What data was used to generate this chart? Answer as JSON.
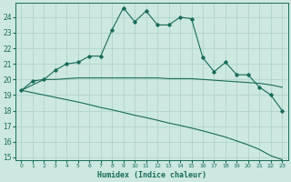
{
  "xlabel": "Humidex (Indice chaleur)",
  "x_ticks": [
    0,
    1,
    2,
    3,
    4,
    5,
    6,
    7,
    8,
    9,
    10,
    11,
    12,
    13,
    14,
    15,
    16,
    17,
    18,
    19,
    20,
    21,
    22,
    23
  ],
  "ylim": [
    14.8,
    24.9
  ],
  "yticks": [
    15,
    16,
    17,
    18,
    19,
    20,
    21,
    22,
    23,
    24
  ],
  "background_color": "#cce8e0",
  "grid_color": "#b0d4cc",
  "line_color": "#1a6b5a",
  "line1_x": [
    0,
    1,
    2,
    3,
    4,
    5,
    6,
    7,
    8,
    9,
    10,
    11,
    12,
    13,
    14,
    15,
    16,
    17,
    18,
    19,
    20,
    21,
    22,
    23
  ],
  "line1_y": [
    19.3,
    19.9,
    20.0,
    20.6,
    21.0,
    21.1,
    21.5,
    21.5,
    23.2,
    24.6,
    23.7,
    24.4,
    23.5,
    23.5,
    24.0,
    23.9,
    21.4,
    20.5,
    21.1,
    20.3,
    20.3,
    19.5,
    19.0,
    18.0
  ],
  "line2_x": [
    0,
    2,
    3,
    5,
    6,
    7,
    8,
    9,
    10,
    11,
    12,
    13,
    14,
    15,
    16,
    17,
    18,
    19,
    20,
    21,
    22,
    23
  ],
  "line2_y": [
    19.3,
    20.0,
    20.0,
    20.1,
    20.1,
    20.1,
    20.1,
    20.1,
    20.1,
    20.1,
    20.1,
    20.05,
    20.05,
    20.05,
    20.0,
    19.95,
    19.9,
    19.85,
    19.8,
    19.75,
    19.65,
    19.5
  ],
  "line3_x": [
    0,
    1,
    2,
    3,
    4,
    5,
    6,
    7,
    8,
    9,
    10,
    11,
    12,
    13,
    14,
    15,
    16,
    17,
    18,
    19,
    20,
    21,
    22,
    23
  ],
  "line3_y": [
    19.3,
    19.15,
    19.0,
    18.85,
    18.7,
    18.55,
    18.38,
    18.2,
    18.05,
    17.88,
    17.7,
    17.55,
    17.38,
    17.2,
    17.05,
    16.88,
    16.7,
    16.5,
    16.3,
    16.05,
    15.8,
    15.5,
    15.1,
    14.85
  ]
}
